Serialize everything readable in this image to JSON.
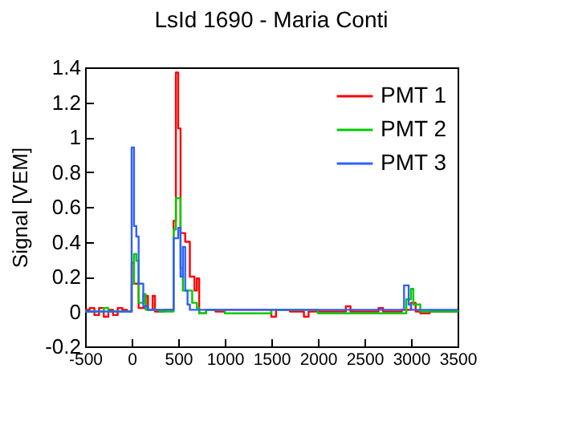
{
  "chart_data": {
    "type": "step",
    "title": "LsId 1690 - Maria Conti",
    "ylabel": "Signal [VEM]",
    "xlim": [
      -500,
      3500
    ],
    "xticks": [
      -500,
      0,
      500,
      1000,
      1500,
      2000,
      2500,
      3000,
      3500
    ],
    "ylim": [
      -0.2,
      1.4
    ],
    "yticks": [
      -0.2,
      0,
      0.2,
      0.4,
      0.6,
      0.8,
      1,
      1.2,
      1.4
    ],
    "grid": false,
    "legend": "top right",
    "series": [
      {
        "name": "PMT 1",
        "color": "#ff0000",
        "x": [
          -500,
          -450,
          -400,
          -350,
          -300,
          -250,
          -200,
          -150,
          -100,
          -50,
          0,
          25,
          75,
          150,
          175,
          225,
          250,
          350,
          450,
          475,
          500,
          525,
          575,
          625,
          675,
          700,
          725,
          800,
          900,
          1000,
          1500,
          1550,
          1700,
          1850,
          1900,
          2300,
          2350,
          2650,
          2700,
          2900,
          3000,
          3050,
          3100,
          3200,
          3500
        ],
        "values": [
          0.01,
          0.02,
          -0.02,
          0.02,
          -0.03,
          0.01,
          -0.02,
          0.02,
          0.01,
          0,
          0.28,
          0.16,
          0.02,
          0.09,
          0.01,
          0.09,
          0,
          0.01,
          0.52,
          1.37,
          1.05,
          0.45,
          0.4,
          0.2,
          0.12,
          0.19,
          -0.01,
          0.01,
          0,
          0.01,
          -0.03,
          0.01,
          0,
          -0.03,
          0,
          0.03,
          0,
          0.02,
          0,
          0.01,
          0.05,
          0,
          -0.01,
          0,
          0
        ]
      },
      {
        "name": "PMT 2",
        "color": "#00cc00",
        "x": [
          -500,
          -300,
          -250,
          -150,
          0,
          25,
          50,
          75,
          125,
          150,
          300,
          450,
          475,
          525,
          550,
          600,
          650,
          700,
          725,
          800,
          1000,
          1500,
          2000,
          2500,
          2950,
          3000,
          3025,
          3100,
          3500
        ],
        "values": [
          0,
          0.02,
          0,
          0,
          0.16,
          0.33,
          0.29,
          0.05,
          0.1,
          0.01,
          0,
          0.47,
          0.65,
          0.25,
          0.12,
          0.12,
          0.05,
          0.02,
          -0.01,
          0.01,
          -0.01,
          0.01,
          -0.01,
          -0.01,
          0.07,
          0.13,
          0.04,
          0,
          0.01
        ]
      },
      {
        "name": "PMT 3",
        "color": "#3060ff",
        "x": [
          -500,
          0,
          25,
          50,
          75,
          125,
          175,
          450,
          500,
          525,
          550,
          575,
          600,
          625,
          1000,
          2900,
          2925,
          2975,
          3000,
          3500
        ],
        "values": [
          0,
          0.94,
          0.49,
          0.43,
          0.16,
          0.03,
          0.01,
          0.42,
          0.48,
          0.2,
          0.37,
          0.12,
          0.04,
          0.01,
          0.01,
          0.01,
          0.15,
          0.04,
          0.01,
          0.01
        ]
      }
    ]
  }
}
